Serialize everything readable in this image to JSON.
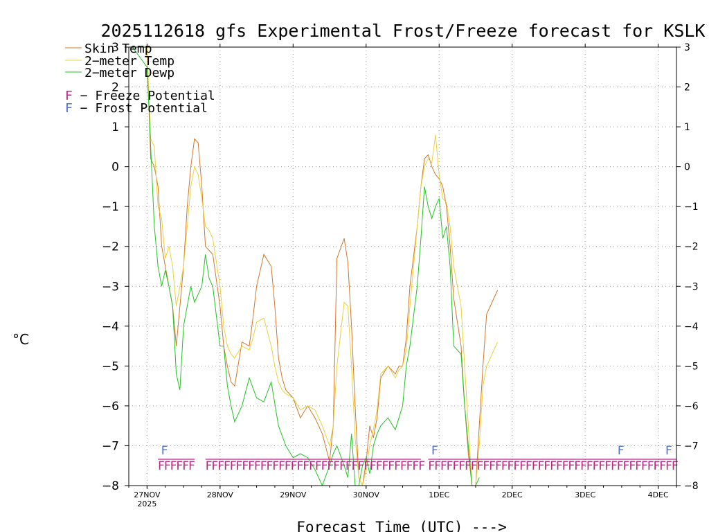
{
  "chart_data": {
    "type": "line",
    "title": "2025112618 gfs Experimental Frost/Freeze forecast for KSLK",
    "xlabel": "Forecast Time (UTC) --->",
    "ylabel": "°C",
    "ylim": [
      -8,
      3
    ],
    "yticks": [
      "3",
      "2",
      "1",
      "0",
      "−1",
      "−2",
      "−3",
      "−4",
      "−5",
      "−6",
      "−7",
      "−8"
    ],
    "xlim": [
      -0.25,
      7.25
    ],
    "xticks": [
      {
        "label": "27NOV",
        "sub": "2025",
        "day": 0
      },
      {
        "label": "28NOV",
        "sub": "",
        "day": 1
      },
      {
        "label": "29NOV",
        "sub": "",
        "day": 2
      },
      {
        "label": "30NOV",
        "sub": "",
        "day": 3
      },
      {
        "label": "1DEC",
        "sub": "",
        "day": 4
      },
      {
        "label": "2DEC",
        "sub": "",
        "day": 5
      },
      {
        "label": "3DEC",
        "sub": "",
        "day": 6
      },
      {
        "label": "4DEC",
        "sub": "",
        "day": 7
      }
    ],
    "grid": true,
    "series": [
      {
        "name": "Skin Temp",
        "color": "#d2762a",
        "x": [
          -0.2,
          0.0,
          0.05,
          0.1,
          0.15,
          0.2,
          0.3,
          0.35,
          0.4,
          0.5,
          0.55,
          0.6,
          0.65,
          0.7,
          0.75,
          0.8,
          0.85,
          0.9,
          1.0,
          1.05,
          1.1,
          1.15,
          1.2,
          1.3,
          1.4,
          1.45,
          1.5,
          1.6,
          1.7,
          1.75,
          1.8,
          1.85,
          1.9,
          2.0,
          2.1,
          2.2,
          2.3,
          2.4,
          2.5,
          2.55,
          2.6,
          2.7,
          2.75,
          2.8,
          2.85,
          2.9,
          2.95,
          3.0,
          3.05,
          3.1,
          3.15,
          3.2,
          3.3,
          3.4,
          3.45,
          3.5,
          3.55,
          3.6,
          3.7,
          3.75,
          3.8,
          3.85,
          3.9,
          3.95,
          4.0,
          4.05,
          4.1,
          4.15,
          4.2,
          4.3,
          4.35,
          4.4,
          4.45,
          4.5,
          4.55,
          4.6,
          4.65,
          4.7,
          4.75,
          4.8
        ],
        "y": [
          3.0,
          3.0,
          0.2,
          0.0,
          -0.5,
          -2.0,
          -3.0,
          -3.5,
          -4.5,
          -2.5,
          -1.0,
          0.0,
          0.7,
          0.6,
          -0.5,
          -2.0,
          -2.1,
          -2.2,
          -3.5,
          -4.5,
          -5.0,
          -5.4,
          -5.5,
          -4.4,
          -4.5,
          -3.8,
          -3.0,
          -2.2,
          -2.5,
          -3.5,
          -4.8,
          -5.3,
          -5.6,
          -5.8,
          -6.3,
          -6.0,
          -6.3,
          -6.7,
          -7.4,
          -6.5,
          -2.3,
          -1.8,
          -2.4,
          -4.0,
          -6.0,
          -7.8,
          -8.0,
          -7.4,
          -6.5,
          -6.8,
          -6.3,
          -5.3,
          -5.0,
          -5.2,
          -5.0,
          -5.0,
          -4.3,
          -3.0,
          -1.5,
          -0.5,
          0.2,
          0.3,
          0.0,
          -0.2,
          -0.3,
          -0.5,
          -1.0,
          -2.0,
          -3.3,
          -4.5,
          -6.0,
          -7.2,
          -8.0,
          -8.0,
          -6.5,
          -5.0,
          -3.7,
          -3.5,
          -3.3,
          -3.1
        ]
      },
      {
        "name": "2-meter Temp",
        "color": "#e8d23a",
        "x": [
          -0.2,
          0.0,
          0.05,
          0.1,
          0.15,
          0.2,
          0.25,
          0.3,
          0.35,
          0.4,
          0.5,
          0.55,
          0.6,
          0.65,
          0.7,
          0.75,
          0.8,
          0.85,
          0.9,
          1.0,
          1.05,
          1.1,
          1.15,
          1.2,
          1.3,
          1.4,
          1.45,
          1.5,
          1.6,
          1.7,
          1.75,
          1.8,
          1.85,
          1.9,
          2.0,
          2.1,
          2.2,
          2.3,
          2.4,
          2.5,
          2.55,
          2.6,
          2.7,
          2.75,
          2.8,
          2.85,
          2.9,
          2.95,
          3.0,
          3.05,
          3.1,
          3.15,
          3.2,
          3.3,
          3.4,
          3.45,
          3.5,
          3.55,
          3.6,
          3.7,
          3.75,
          3.8,
          3.85,
          3.9,
          3.95,
          4.0,
          4.05,
          4.1,
          4.15,
          4.2,
          4.3,
          4.35,
          4.4,
          4.45,
          4.5,
          4.55,
          4.6,
          4.65,
          4.7,
          4.75,
          4.8
        ],
        "y": [
          3.0,
          3.0,
          0.7,
          0.5,
          -1.0,
          -1.3,
          -2.3,
          -2.0,
          -2.5,
          -3.5,
          -2.5,
          -1.5,
          -0.5,
          0.0,
          -0.2,
          -0.8,
          -1.5,
          -1.6,
          -1.8,
          -3.0,
          -4.0,
          -4.5,
          -4.7,
          -4.8,
          -4.5,
          -4.6,
          -4.3,
          -3.9,
          -3.8,
          -4.5,
          -5.0,
          -5.4,
          -5.6,
          -5.7,
          -5.8,
          -6.1,
          -6.0,
          -6.1,
          -6.5,
          -7.0,
          -6.5,
          -5.0,
          -3.4,
          -3.5,
          -5.0,
          -6.8,
          -7.8,
          -8.0,
          -7.6,
          -7.0,
          -6.6,
          -6.1,
          -5.2,
          -5.0,
          -5.3,
          -5.1,
          -5.0,
          -4.6,
          -3.5,
          -1.5,
          -0.5,
          0.0,
          0.2,
          0.1,
          0.8,
          -0.2,
          -0.8,
          -0.9,
          -1.5,
          -2.5,
          -3.5,
          -5.0,
          -6.5,
          -8.0,
          -8.0,
          -7.0,
          -5.5,
          -5.0,
          -4.8,
          -4.6,
          -4.4
        ]
      },
      {
        "name": "2-meter Dewp",
        "color": "#22c322",
        "x": [
          -0.2,
          0.0,
          0.05,
          0.1,
          0.15,
          0.2,
          0.25,
          0.3,
          0.35,
          0.4,
          0.45,
          0.5,
          0.6,
          0.65,
          0.7,
          0.75,
          0.8,
          0.85,
          0.9,
          1.0,
          1.05,
          1.1,
          1.15,
          1.2,
          1.3,
          1.4,
          1.5,
          1.6,
          1.7,
          1.8,
          1.9,
          2.0,
          2.1,
          2.2,
          2.3,
          2.4,
          2.5,
          2.55,
          2.6,
          2.7,
          2.75,
          2.8,
          2.85,
          2.9,
          2.95,
          3.0,
          3.05,
          3.1,
          3.15,
          3.2,
          3.3,
          3.4,
          3.45,
          3.5,
          3.55,
          3.6,
          3.7,
          3.75,
          3.8,
          3.85,
          3.9,
          3.95,
          4.0,
          4.05,
          4.1,
          4.15,
          4.2,
          4.3,
          4.35,
          4.4,
          4.45,
          4.5,
          4.55
        ],
        "y": [
          3.0,
          2.5,
          0.5,
          -1.5,
          -2.5,
          -3.0,
          -2.6,
          -3.0,
          -3.5,
          -5.2,
          -5.6,
          -4.0,
          -3.0,
          -3.4,
          -3.2,
          -3.0,
          -2.2,
          -2.8,
          -3.0,
          -4.5,
          -4.5,
          -5.5,
          -6.0,
          -6.4,
          -6.0,
          -5.3,
          -5.8,
          -5.9,
          -5.4,
          -6.5,
          -7.0,
          -7.3,
          -7.2,
          -7.3,
          -7.6,
          -8.0,
          -7.5,
          -7.2,
          -7.0,
          -7.5,
          -7.8,
          -6.7,
          -8.0,
          -8.0,
          -7.5,
          -7.3,
          -7.7,
          -7.0,
          -6.7,
          -6.5,
          -6.3,
          -6.6,
          -6.3,
          -6.0,
          -5.0,
          -4.5,
          -3.0,
          -1.8,
          -0.5,
          -1.0,
          -1.3,
          -1.0,
          -0.8,
          -1.8,
          -1.5,
          -2.5,
          -4.5,
          -4.7,
          -6.0,
          -7.0,
          -8.0,
          -8.0,
          -7.8
        ]
      }
    ],
    "freeze_potential": {
      "name": "Freeze Potential",
      "symbol": "F",
      "color": "#c0208a",
      "ranges": [
        [
          0.15,
          0.65
        ],
        [
          0.8,
          3.75
        ],
        [
          3.85,
          7.25
        ]
      ]
    },
    "frost_potential": {
      "name": "Frost Potential",
      "symbol": "F",
      "color": "#4a6fd6",
      "positions": [
        0.25,
        3.95,
        6.5,
        7.25
      ]
    }
  },
  "legend": {
    "skin": "Skin Temp",
    "temp2m": "2−meter Temp",
    "dewp2m": "2−meter Dewp",
    "freeze_letter": "F",
    "freeze_text": " − Freeze Potential",
    "frost_letter": "F",
    "frost_text": " − Frost Potential"
  }
}
